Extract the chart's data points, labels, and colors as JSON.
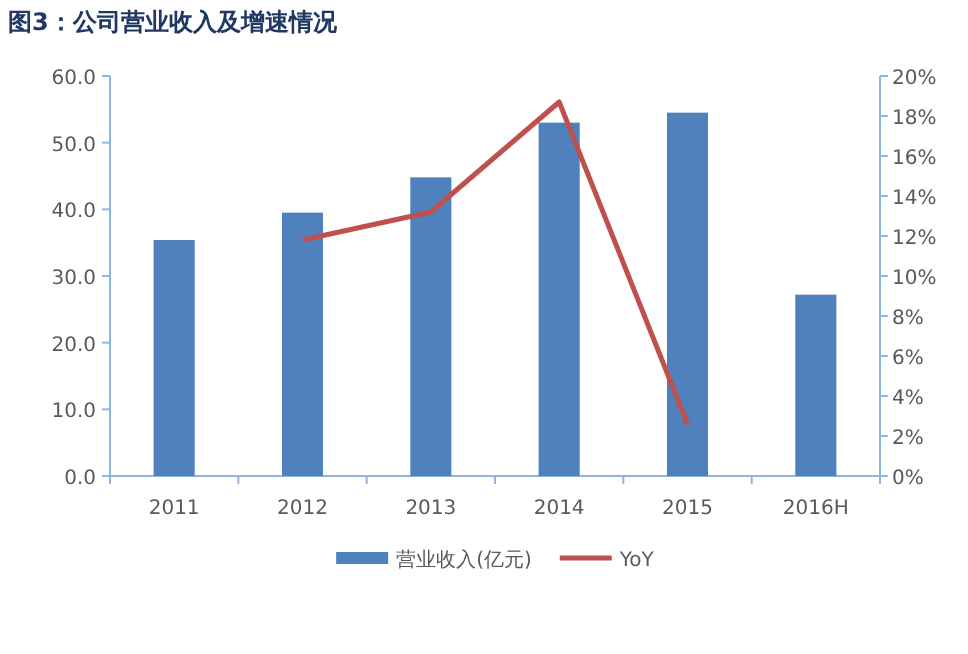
{
  "chart_data": {
    "type": "bar",
    "title": "图3：公司营业收入及增速情况",
    "categories": [
      "2011",
      "2012",
      "2013",
      "2014",
      "2015",
      "2016H"
    ],
    "series": [
      {
        "name": "营业收入(亿元)",
        "color": "#4f81bd",
        "values": [
          35.4,
          39.5,
          44.8,
          53.0,
          54.5,
          27.2
        ]
      },
      {
        "name": "YoY",
        "type": "line",
        "axis": "y2",
        "color": "#c0504d",
        "values": [
          null,
          11.8,
          13.2,
          18.7,
          2.6,
          null
        ]
      }
    ],
    "ylim": [
      0,
      60
    ],
    "yticks": [
      {
        "value": 0,
        "label": "0.0"
      },
      {
        "value": 10,
        "label": "10.0"
      },
      {
        "value": 20,
        "label": "20.0"
      },
      {
        "value": 30,
        "label": "30.0"
      },
      {
        "value": 40,
        "label": "40.0"
      },
      {
        "value": 50,
        "label": "50.0"
      },
      {
        "value": 60,
        "label": "60.0"
      }
    ],
    "y2lim": [
      0,
      20
    ],
    "y2ticks": [
      {
        "value": 0,
        "label": "0%"
      },
      {
        "value": 2,
        "label": "2%"
      },
      {
        "value": 4,
        "label": "4%"
      },
      {
        "value": 6,
        "label": "6%"
      },
      {
        "value": 8,
        "label": "8%"
      },
      {
        "value": 10,
        "label": "10%"
      },
      {
        "value": 12,
        "label": "12%"
      },
      {
        "value": 14,
        "label": "14%"
      },
      {
        "value": 16,
        "label": "16%"
      },
      {
        "value": 18,
        "label": "18%"
      },
      {
        "value": 20,
        "label": "20%"
      }
    ],
    "grid": false,
    "legend": "bottom",
    "marker": "none",
    "line_style": "solid"
  }
}
